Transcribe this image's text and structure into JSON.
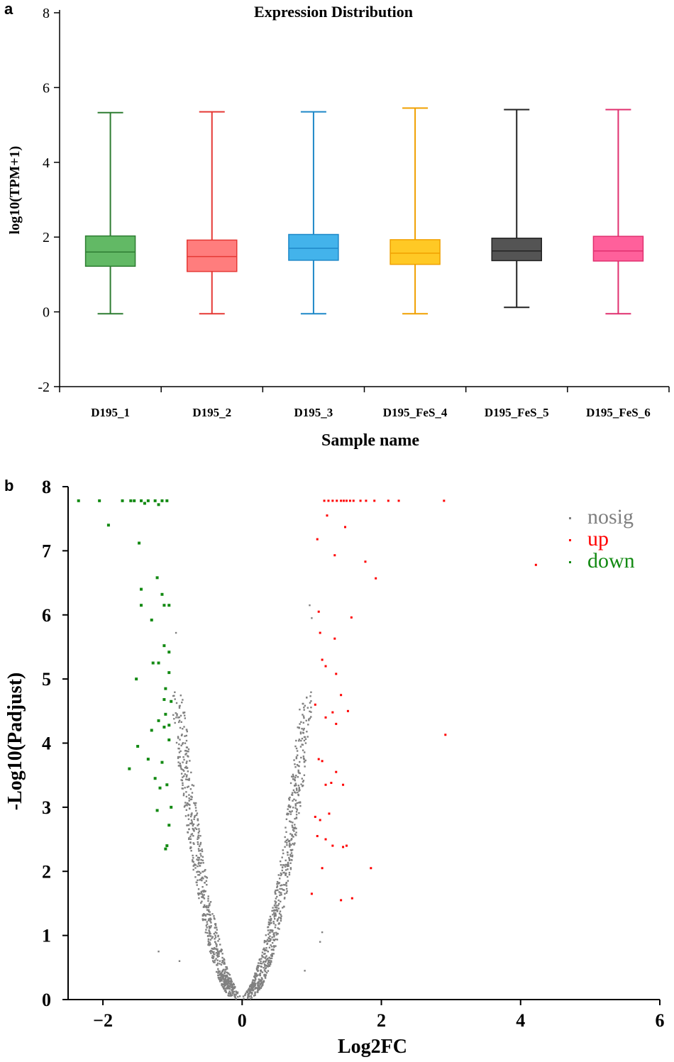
{
  "chart_data": [
    {
      "panel_label": "a",
      "type": "box",
      "title": "Expression Distribution",
      "xlabel": "Sample name",
      "ylabel": "log10(TPM+1)",
      "ylim": [
        -2,
        8
      ],
      "yticks": [
        -2,
        0,
        2,
        4,
        6,
        8
      ],
      "categories": [
        "D195_1",
        "D195_2",
        "D195_3",
        "D195_FeS_4",
        "D195_FeS_5",
        "D195_FeS_6"
      ],
      "boxes": [
        {
          "name": "D195_1",
          "min": -0.05,
          "q1": 1.22,
          "median": 1.6,
          "q3": 2.03,
          "max": 5.33,
          "color": "#4caf50",
          "stroke": "#2e7d32"
        },
        {
          "name": "D195_2",
          "min": -0.05,
          "q1": 1.08,
          "median": 1.48,
          "q3": 1.92,
          "max": 5.35,
          "color": "#ff6b6b",
          "stroke": "#e53935"
        },
        {
          "name": "D195_3",
          "min": -0.05,
          "q1": 1.38,
          "median": 1.7,
          "q3": 2.07,
          "max": 5.35,
          "color": "#29a8e8",
          "stroke": "#1e88c8"
        },
        {
          "name": "D195_FeS_4",
          "min": -0.05,
          "q1": 1.27,
          "median": 1.57,
          "q3": 1.93,
          "max": 5.45,
          "color": "#ffc107",
          "stroke": "#f0a000"
        },
        {
          "name": "D195_FeS_5",
          "min": 0.12,
          "q1": 1.37,
          "median": 1.63,
          "q3": 1.97,
          "max": 5.41,
          "color": "#3c3c3c",
          "stroke": "#222222"
        },
        {
          "name": "D195_FeS_6",
          "min": -0.05,
          "q1": 1.36,
          "median": 1.63,
          "q3": 2.02,
          "max": 5.41,
          "color": "#ff4a8d",
          "stroke": "#e0306f"
        }
      ]
    },
    {
      "panel_label": "b",
      "type": "scatter",
      "title": "",
      "xlabel": "Log2FC",
      "ylabel": "-Log10(Padjust)",
      "xlim": [
        -2.5,
        6
      ],
      "ylim": [
        0,
        8
      ],
      "xticks": [
        -2,
        0,
        2,
        4,
        6
      ],
      "yticks": [
        0,
        1,
        2,
        3,
        4,
        5,
        6,
        7,
        8
      ],
      "legend": [
        {
          "name": "nosig",
          "color": "#7f7f7f"
        },
        {
          "name": "up",
          "color": "#ff0000"
        },
        {
          "name": "down",
          "color": "#138a13"
        }
      ],
      "series": [
        {
          "name": "up",
          "color": "#ff0000",
          "points": [
            [
              1.18,
              7.78
            ],
            [
              1.24,
              7.78
            ],
            [
              1.3,
              7.78
            ],
            [
              1.36,
              7.78
            ],
            [
              1.42,
              7.78
            ],
            [
              1.46,
              7.78
            ],
            [
              1.5,
              7.78
            ],
            [
              1.55,
              7.78
            ],
            [
              1.6,
              7.78
            ],
            [
              1.7,
              7.78
            ],
            [
              1.78,
              7.78
            ],
            [
              1.9,
              7.78
            ],
            [
              2.1,
              7.78
            ],
            [
              2.25,
              7.78
            ],
            [
              2.9,
              7.78
            ],
            [
              1.22,
              7.55
            ],
            [
              1.48,
              7.37
            ],
            [
              1.08,
              7.18
            ],
            [
              1.33,
              6.93
            ],
            [
              1.77,
              6.83
            ],
            [
              4.22,
              6.78
            ],
            [
              1.92,
              6.57
            ],
            [
              1.1,
              6.05
            ],
            [
              1.57,
              5.96
            ],
            [
              1.12,
              5.72
            ],
            [
              1.33,
              5.63
            ],
            [
              1.15,
              5.3
            ],
            [
              1.2,
              5.2
            ],
            [
              1.35,
              5.08
            ],
            [
              1.42,
              4.75
            ],
            [
              1.05,
              4.6
            ],
            [
              1.3,
              4.48
            ],
            [
              1.52,
              4.5
            ],
            [
              1.2,
              4.4
            ],
            [
              1.35,
              4.3
            ],
            [
              2.92,
              4.13
            ],
            [
              1.1,
              3.75
            ],
            [
              1.15,
              3.72
            ],
            [
              1.35,
              3.55
            ],
            [
              1.2,
              3.35
            ],
            [
              1.28,
              3.38
            ],
            [
              1.45,
              3.35
            ],
            [
              1.05,
              2.85
            ],
            [
              1.12,
              2.8
            ],
            [
              1.25,
              2.9
            ],
            [
              1.08,
              2.55
            ],
            [
              1.2,
              2.5
            ],
            [
              1.3,
              2.4
            ],
            [
              1.45,
              2.38
            ],
            [
              1.5,
              2.4
            ],
            [
              1.85,
              2.05
            ],
            [
              1.15,
              2.05
            ],
            [
              1.0,
              1.65
            ],
            [
              1.42,
              1.55
            ],
            [
              1.58,
              1.58
            ]
          ]
        },
        {
          "name": "down",
          "color": "#138a13",
          "points": [
            [
              -2.35,
              7.78
            ],
            [
              -2.05,
              7.78
            ],
            [
              -1.72,
              7.78
            ],
            [
              -1.55,
              7.78
            ],
            [
              -1.45,
              7.78
            ],
            [
              -1.35,
              7.78
            ],
            [
              -1.25,
              7.78
            ],
            [
              -1.15,
              7.78
            ],
            [
              -1.08,
              7.78
            ],
            [
              -1.6,
              7.78
            ],
            [
              -1.2,
              7.72
            ],
            [
              -1.4,
              7.74
            ],
            [
              -1.92,
              7.4
            ],
            [
              -1.48,
              7.12
            ],
            [
              -1.22,
              6.58
            ],
            [
              -1.45,
              6.4
            ],
            [
              -1.15,
              6.32
            ],
            [
              -1.45,
              6.15
            ],
            [
              -1.12,
              6.15
            ],
            [
              -1.05,
              6.15
            ],
            [
              -1.3,
              5.92
            ],
            [
              -1.12,
              5.52
            ],
            [
              -1.05,
              5.42
            ],
            [
              -1.2,
              5.25
            ],
            [
              -1.28,
              5.25
            ],
            [
              -1.05,
              5.1
            ],
            [
              -1.52,
              5.0
            ],
            [
              -1.1,
              4.85
            ],
            [
              -1.12,
              4.68
            ],
            [
              -1.02,
              4.65
            ],
            [
              -1.1,
              4.45
            ],
            [
              -1.2,
              4.35
            ],
            [
              -1.05,
              4.28
            ],
            [
              -1.12,
              4.25
            ],
            [
              -1.3,
              4.2
            ],
            [
              -1.05,
              4.05
            ],
            [
              -1.5,
              3.95
            ],
            [
              -1.35,
              3.75
            ],
            [
              -1.15,
              3.7
            ],
            [
              -1.62,
              3.6
            ],
            [
              -1.25,
              3.45
            ],
            [
              -1.08,
              3.35
            ],
            [
              -1.18,
              3.3
            ],
            [
              -1.02,
              3.0
            ],
            [
              -1.22,
              2.95
            ],
            [
              -1.05,
              2.72
            ],
            [
              -1.08,
              2.4
            ],
            [
              -1.1,
              2.35
            ]
          ]
        }
      ]
    }
  ]
}
